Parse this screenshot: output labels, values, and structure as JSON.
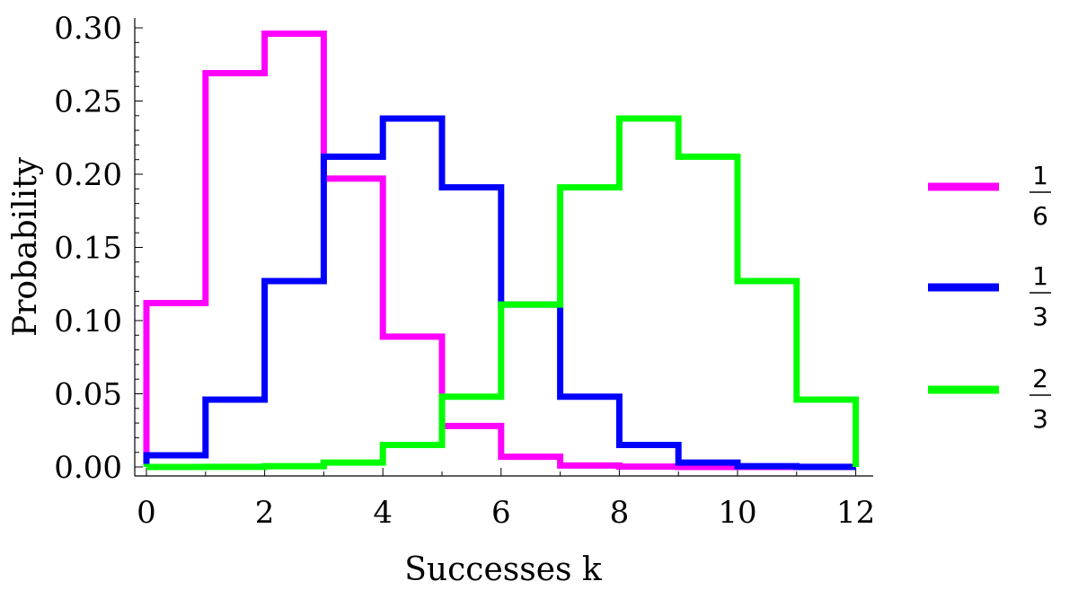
{
  "chart_data": {
    "type": "line",
    "style": "step",
    "xlabel": "Successes k",
    "ylabel": "Probability",
    "xlim": [
      0,
      12
    ],
    "ylim": [
      0,
      0.3
    ],
    "xticks": [
      "0",
      "2",
      "4",
      "6",
      "8",
      "10",
      "12"
    ],
    "yticks": [
      "0.00",
      "0.05",
      "0.10",
      "0.15",
      "0.20",
      "0.25",
      "0.30"
    ],
    "grid": false,
    "legend_position": "right",
    "x": [
      0,
      1,
      2,
      3,
      4,
      5,
      6,
      7,
      8,
      9,
      10,
      11,
      12
    ],
    "series": [
      {
        "legend_numerator": "1",
        "legend_denominator": "6",
        "color": "#ff00ff",
        "values": [
          0.112,
          0.269,
          0.296,
          0.197,
          0.089,
          0.028,
          0.007,
          0.001,
          0.0002,
          2e-05,
          1e-06,
          0.0,
          0.0
        ]
      },
      {
        "legend_numerator": "1",
        "legend_denominator": "3",
        "color": "#0000ff",
        "values": [
          0.008,
          0.046,
          0.127,
          0.212,
          0.238,
          0.191,
          0.111,
          0.048,
          0.015,
          0.003,
          0.0005,
          5e-05,
          2e-06
        ]
      },
      {
        "legend_numerator": "2",
        "legend_denominator": "3",
        "color": "#00ff00",
        "values": [
          2e-06,
          5e-05,
          0.0005,
          0.003,
          0.015,
          0.048,
          0.111,
          0.191,
          0.238,
          0.212,
          0.127,
          0.046,
          0.008
        ]
      }
    ]
  }
}
